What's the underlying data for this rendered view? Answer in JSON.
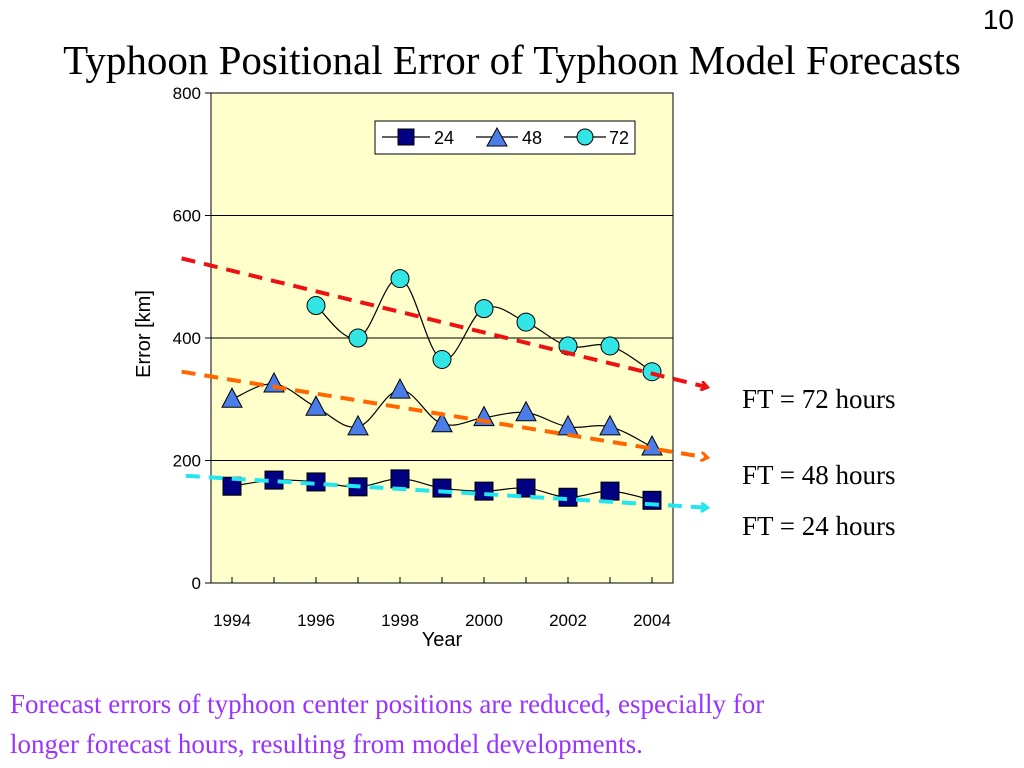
{
  "slide": {
    "page_number": "10",
    "title": "Typhoon Positional Error of Typhoon Model Forecasts",
    "caption_lines": [
      "Forecast errors of typhoon center positions are reduced, especially for",
      "longer forecast hours, resulting from model developments."
    ]
  },
  "annotations": {
    "ft72": "FT = 72 hours",
    "ft48": "FT = 48 hours",
    "ft24": "FT = 24 hours"
  },
  "chart_data": {
    "type": "line",
    "xlabel": "Year",
    "ylabel": "Error [km]",
    "ylim": [
      0,
      800
    ],
    "xlim": [
      1993.5,
      2004.5
    ],
    "yticks": [
      0,
      200,
      400,
      600,
      800
    ],
    "xticks": [
      1994,
      1996,
      1998,
      2000,
      2002,
      2004
    ],
    "grid": "horizontal",
    "plot_background": "#ffffcc",
    "legend_position": "top-right",
    "series": [
      {
        "name": "24",
        "marker": "square",
        "fill": "#000080",
        "x": [
          1994,
          1995,
          1996,
          1997,
          1998,
          1999,
          2000,
          2001,
          2002,
          2003,
          2004
        ],
        "values": [
          158,
          168,
          165,
          157,
          170,
          155,
          150,
          155,
          140,
          150,
          135
        ]
      },
      {
        "name": "48",
        "marker": "triangle",
        "fill": "#4a7de8",
        "x": [
          1994,
          1995,
          1996,
          1997,
          1998,
          1999,
          2000,
          2001,
          2002,
          2003,
          2004
        ],
        "values": [
          300,
          325,
          287,
          255,
          315,
          260,
          270,
          278,
          255,
          255,
          222
        ]
      },
      {
        "name": "72",
        "marker": "circle",
        "fill": "#33e6e6",
        "x": [
          1996,
          1997,
          1998,
          1999,
          2000,
          2001,
          2002,
          2003,
          2004
        ],
        "values": [
          453,
          400,
          497,
          365,
          448,
          426,
          387,
          387,
          345
        ]
      }
    ],
    "trend_lines": [
      {
        "series": "72",
        "color": "#ee1111",
        "from": [
          1992.8,
          530
        ],
        "to": [
          2005.3,
          320
        ]
      },
      {
        "series": "48",
        "color": "#ff6600",
        "from": [
          1992.8,
          345
        ],
        "to": [
          2005.3,
          205
        ]
      },
      {
        "series": "24",
        "color": "#22e6ee",
        "from": [
          1992.9,
          175
        ],
        "to": [
          2005.3,
          123
        ]
      }
    ]
  }
}
